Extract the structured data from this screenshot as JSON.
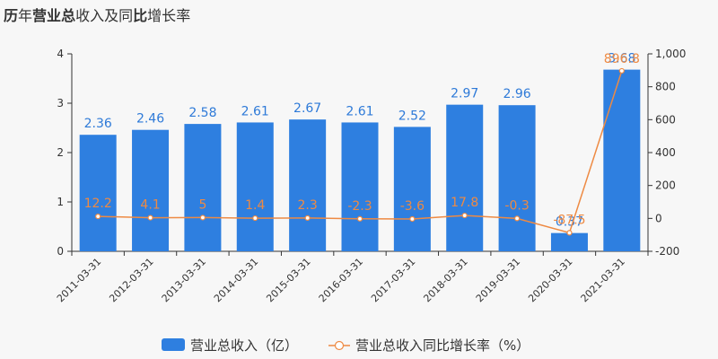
{
  "title": "历年营业总收入及同比增长率",
  "colors": {
    "bar": "#2e7fe0",
    "line": "#ee8a43",
    "axis": "#333333",
    "background": "#f7f7f7"
  },
  "chart_data": {
    "type": "bar",
    "combo": "bar+line",
    "categories": [
      "2011-03-31",
      "2012-03-31",
      "2013-03-31",
      "2014-03-31",
      "2015-03-31",
      "2016-03-31",
      "2017-03-31",
      "2018-03-31",
      "2019-03-31",
      "2020-03-31",
      "2021-03-31"
    ],
    "series": [
      {
        "name": "营业总收入（亿）",
        "type": "bar",
        "axis": "left",
        "values": [
          2.36,
          2.46,
          2.58,
          2.61,
          2.67,
          2.61,
          2.52,
          2.97,
          2.96,
          0.37,
          3.68
        ],
        "labels": [
          "2.36",
          "2.46",
          "2.58",
          "2.61",
          "2.67",
          "2.61",
          "2.52",
          "2.97",
          "2.96",
          "0.37",
          "3.68"
        ]
      },
      {
        "name": "营业总收入同比增长率（%）",
        "type": "line",
        "axis": "right",
        "values": [
          12.2,
          4.1,
          5,
          1.4,
          2.3,
          -2.3,
          -3.6,
          17.8,
          -0.3,
          -87.5,
          896.8
        ],
        "labels": [
          "12.2",
          "4.1",
          "5",
          "1.4",
          "2.3",
          "-2.3",
          "-3.6",
          "17.8",
          "-0.3",
          "-87.5",
          "896.8"
        ]
      }
    ],
    "y_left": {
      "ylim": [
        0,
        4
      ],
      "ticks": [
        "0",
        "1",
        "2",
        "3",
        "4"
      ]
    },
    "y_right": {
      "ylim": [
        -200,
        1000
      ],
      "ticks": [
        "-200",
        "0",
        "200",
        "400",
        "600",
        "800",
        "1,000"
      ]
    },
    "legend": "bottom",
    "grid": false
  }
}
